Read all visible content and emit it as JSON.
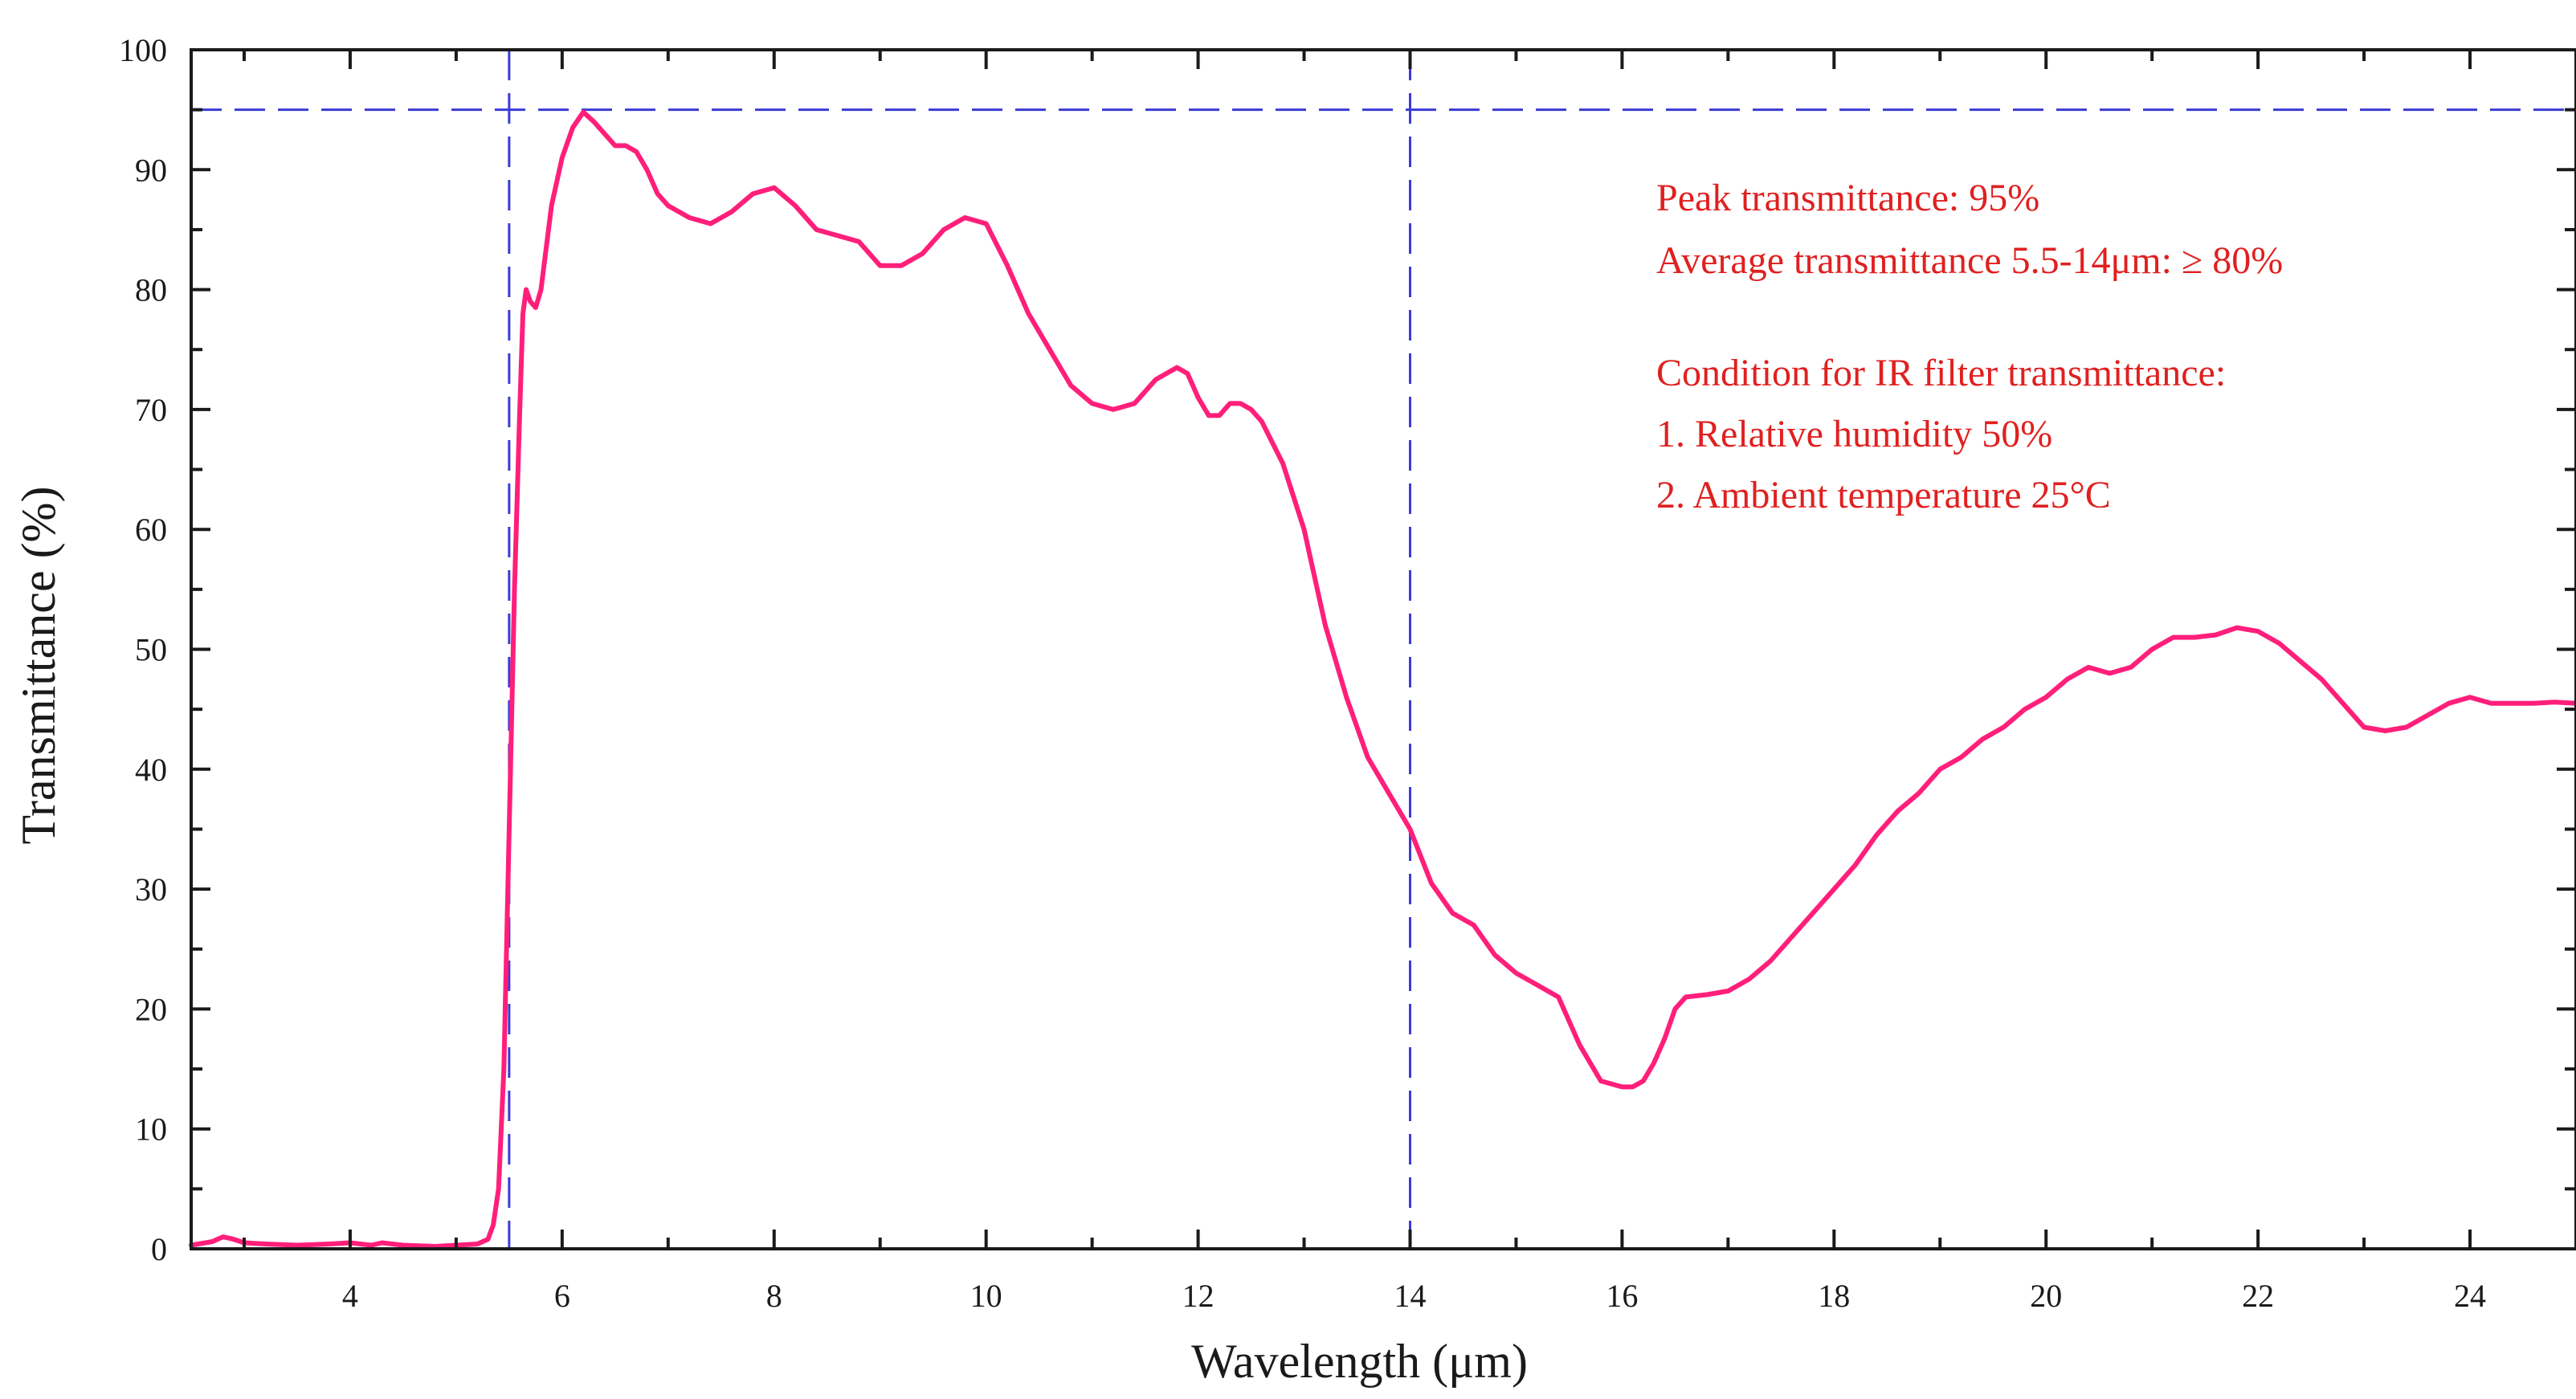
{
  "chart_data": {
    "type": "line",
    "title": "",
    "xlabel": "Wavelength (μm)",
    "ylabel": "Transmittance (%)",
    "xlim": [
      2.5,
      25
    ],
    "ylim": [
      0,
      100
    ],
    "x_ticks": [
      4,
      6,
      8,
      10,
      12,
      14,
      16,
      18,
      20,
      22,
      24
    ],
    "y_ticks": [
      0,
      10,
      20,
      30,
      40,
      50,
      60,
      70,
      80,
      90,
      100
    ],
    "grid": false,
    "colors": {
      "series": "#ff1f7a",
      "reference_lines": "#3b3bd6",
      "annotation_text": "#e02020",
      "axes": "#1a1a1a"
    },
    "reference_lines": {
      "vertical_x": [
        5.5,
        14
      ],
      "horizontal_y": [
        95
      ]
    },
    "annotations": [
      "Peak transmittance: 95%",
      "Average transmittance 5.5-14μm: ≥  80%",
      "Condition for IR filter transmittance:",
      "1. Relative humidity 50%",
      "2. Ambient temperature 25°C"
    ],
    "series": [
      {
        "x": [
          2.5,
          2.7,
          2.8,
          2.9,
          3.0,
          3.2,
          3.5,
          3.8,
          4.0,
          4.2,
          4.3,
          4.5,
          4.8,
          5.0,
          5.2,
          5.3,
          5.35,
          5.4,
          5.45,
          5.5,
          5.55,
          5.6,
          5.63,
          5.66,
          5.7,
          5.75,
          5.8,
          5.9,
          6.0,
          6.1,
          6.2,
          6.3,
          6.4,
          6.5,
          6.6,
          6.7,
          6.8,
          6.9,
          7.0,
          7.2,
          7.4,
          7.6,
          7.8,
          8.0,
          8.2,
          8.4,
          8.6,
          8.8,
          9.0,
          9.2,
          9.4,
          9.6,
          9.8,
          10.0,
          10.2,
          10.4,
          10.6,
          10.8,
          11.0,
          11.2,
          11.4,
          11.6,
          11.8,
          11.9,
          12.0,
          12.1,
          12.2,
          12.3,
          12.4,
          12.5,
          12.6,
          12.8,
          13.0,
          13.2,
          13.4,
          13.6,
          13.8,
          14.0,
          14.2,
          14.4,
          14.6,
          14.8,
          15.0,
          15.2,
          15.4,
          15.6,
          15.8,
          16.0,
          16.1,
          16.2,
          16.3,
          16.4,
          16.5,
          16.6,
          16.8,
          17.0,
          17.2,
          17.4,
          17.6,
          17.8,
          18.0,
          18.2,
          18.4,
          18.6,
          18.8,
          19.0,
          19.2,
          19.4,
          19.6,
          19.8,
          20.0,
          20.2,
          20.4,
          20.6,
          20.8,
          21.0,
          21.2,
          21.4,
          21.6,
          21.8,
          22.0,
          22.2,
          22.4,
          22.6,
          22.8,
          23.0,
          23.2,
          23.4,
          23.6,
          23.8,
          24.0,
          24.2,
          24.4,
          24.6,
          24.8,
          25.0
        ],
        "y": [
          0.3,
          0.6,
          1.0,
          0.8,
          0.5,
          0.4,
          0.3,
          0.4,
          0.5,
          0.3,
          0.5,
          0.3,
          0.2,
          0.3,
          0.4,
          0.8,
          2.0,
          5.0,
          15.0,
          35.0,
          55.0,
          70.0,
          78.0,
          80.0,
          79.0,
          78.5,
          80.0,
          87.0,
          91.0,
          93.5,
          94.8,
          94.0,
          93.0,
          92.0,
          92.0,
          91.5,
          90.0,
          88.0,
          87.0,
          86.0,
          85.5,
          86.5,
          88.0,
          88.5,
          87.0,
          85.0,
          84.5,
          84.0,
          82.0,
          82.0,
          83.0,
          85.0,
          86.0,
          85.5,
          82.0,
          78.0,
          75.0,
          72.0,
          70.5,
          70.0,
          70.5,
          72.5,
          73.5,
          73.0,
          71.0,
          69.5,
          69.5,
          70.5,
          70.5,
          70.0,
          69.0,
          65.5,
          60.0,
          52.0,
          46.0,
          41.0,
          38.0,
          35.0,
          30.5,
          28.0,
          27.0,
          24.5,
          23.0,
          22.0,
          21.0,
          17.0,
          14.0,
          13.5,
          13.5,
          14.0,
          15.5,
          17.5,
          20.0,
          21.0,
          21.2,
          21.5,
          22.5,
          24.0,
          26.0,
          28.0,
          30.0,
          32.0,
          34.5,
          36.5,
          38.0,
          40.0,
          41.0,
          42.5,
          43.5,
          45.0,
          46.0,
          47.5,
          48.5,
          48.0,
          48.5,
          50.0,
          51.0,
          51.0,
          51.2,
          51.8,
          51.5,
          50.5,
          49.0,
          47.5,
          45.5,
          43.5,
          43.2,
          43.5,
          44.5,
          45.5,
          46.0,
          45.5,
          45.5,
          45.5,
          45.6,
          45.5
        ],
        "name": ""
      }
    ]
  }
}
